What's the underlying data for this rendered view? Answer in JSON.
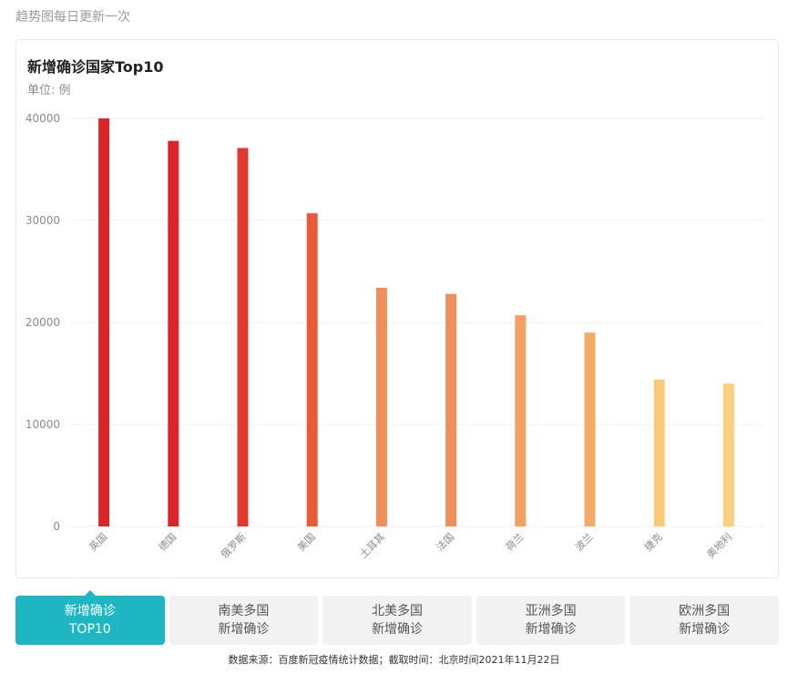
{
  "page": {
    "top_note": "趋势图每日更新一次",
    "source": "数据来源：百度新冠疫情统计数据；截取时间：北京时间2021年11月22日"
  },
  "chart_data": {
    "type": "bar",
    "title": "新增确诊国家Top10",
    "unit_label": "单位: 例",
    "categories": [
      "英国",
      "德国",
      "俄罗斯",
      "美国",
      "土耳其",
      "法国",
      "荷兰",
      "波兰",
      "捷克",
      "奥地利"
    ],
    "values": [
      40000,
      37800,
      37100,
      30700,
      23400,
      22800,
      20700,
      19000,
      14400,
      14000
    ],
    "ylim": [
      0,
      40000
    ],
    "yticks": [
      0,
      10000,
      20000,
      30000,
      40000
    ],
    "grid": true,
    "colors": [
      "#d9262a",
      "#d9262a",
      "#e03a2e",
      "#e75b3b",
      "#ef8f5c",
      "#ef8f5c",
      "#f2a064",
      "#f3ac66",
      "#f9c97a",
      "#fbd080"
    ]
  },
  "tabs": [
    {
      "line1": "新增确诊",
      "line2": "TOP10",
      "active": true
    },
    {
      "line1": "南美多国",
      "line2": "新增确诊",
      "active": false
    },
    {
      "line1": "北美多国",
      "line2": "新增确诊",
      "active": false
    },
    {
      "line1": "亚洲多国",
      "line2": "新增确诊",
      "active": false
    },
    {
      "line1": "欧洲多国",
      "line2": "新增确诊",
      "active": false
    }
  ]
}
